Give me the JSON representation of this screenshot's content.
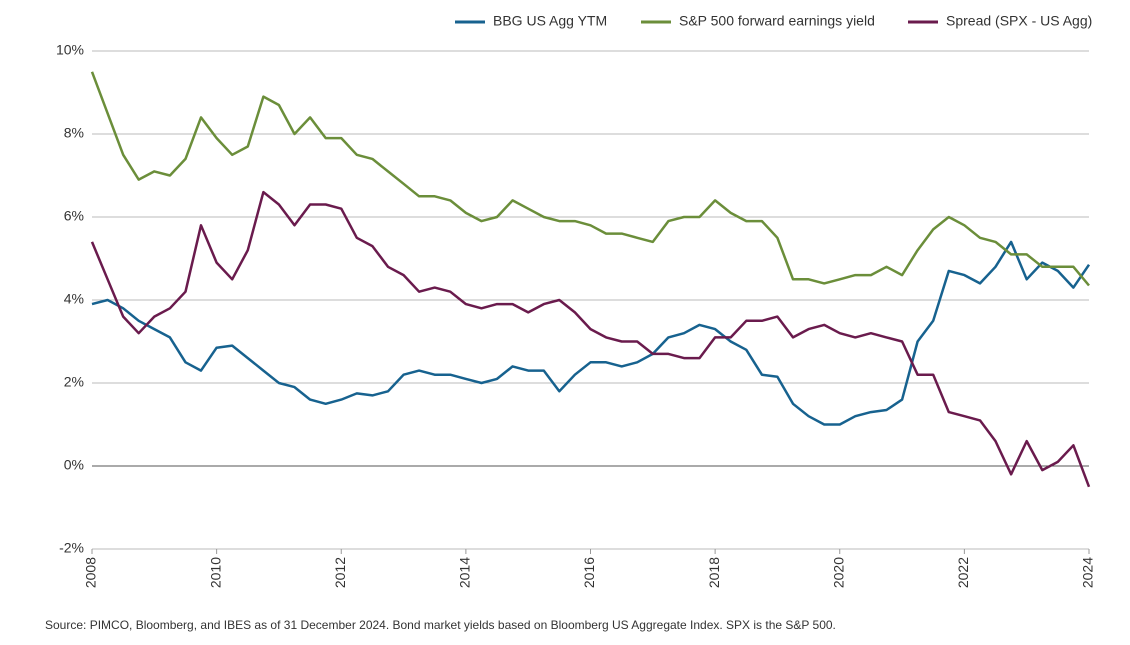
{
  "chart_data": {
    "type": "line",
    "x": [
      2008,
      2008.25,
      2008.5,
      2008.75,
      2009,
      2009.25,
      2009.5,
      2009.75,
      2010,
      2010.25,
      2010.5,
      2010.75,
      2011,
      2011.25,
      2011.5,
      2011.75,
      2012,
      2012.25,
      2012.5,
      2012.75,
      2013,
      2013.25,
      2013.5,
      2013.75,
      2014,
      2014.25,
      2014.5,
      2014.75,
      2015,
      2015.25,
      2015.5,
      2015.75,
      2016,
      2016.25,
      2016.5,
      2016.75,
      2017,
      2017.25,
      2017.5,
      2017.75,
      2018,
      2018.25,
      2018.5,
      2018.75,
      2019,
      2019.25,
      2019.5,
      2019.75,
      2020,
      2020.25,
      2020.5,
      2020.75,
      2021,
      2021.25,
      2021.5,
      2021.75,
      2022,
      2022.25,
      2022.5,
      2022.75,
      2023,
      2023.25,
      2023.5,
      2023.75,
      2024
    ],
    "series": [
      {
        "name": "BBG US Agg YTM",
        "color": "#17628f",
        "values": [
          3.9,
          4.0,
          3.8,
          3.5,
          3.3,
          3.1,
          2.5,
          2.3,
          2.85,
          2.9,
          2.6,
          2.3,
          2.0,
          1.9,
          1.6,
          1.5,
          1.6,
          1.75,
          1.7,
          1.8,
          2.2,
          2.3,
          2.2,
          2.2,
          2.1,
          2.0,
          2.1,
          2.4,
          2.3,
          2.3,
          1.8,
          2.2,
          2.5,
          2.5,
          2.4,
          2.5,
          2.7,
          3.1,
          3.2,
          3.4,
          3.3,
          3.0,
          2.8,
          2.2,
          2.15,
          1.5,
          1.2,
          1.0,
          1.0,
          1.2,
          1.3,
          1.35,
          1.6,
          3.0,
          3.5,
          4.7,
          4.6,
          4.4,
          4.8,
          5.4,
          4.5,
          4.9,
          4.7,
          4.3,
          4.85
        ]
      },
      {
        "name": "S&P 500 forward earnings yield",
        "color": "#6b8e3a",
        "values": [
          9.5,
          8.5,
          7.5,
          6.9,
          7.1,
          7.0,
          7.4,
          8.4,
          7.9,
          7.5,
          7.7,
          8.9,
          8.7,
          8.0,
          8.4,
          7.9,
          7.9,
          7.5,
          7.4,
          7.1,
          6.8,
          6.5,
          6.5,
          6.4,
          6.1,
          5.9,
          6.0,
          6.4,
          6.2,
          6.0,
          5.9,
          5.9,
          5.8,
          5.6,
          5.6,
          5.5,
          5.4,
          5.9,
          6.0,
          6.0,
          6.4,
          6.1,
          5.9,
          5.9,
          5.5,
          4.5,
          4.5,
          4.4,
          4.5,
          4.6,
          4.6,
          4.8,
          4.6,
          5.2,
          5.7,
          6.0,
          5.8,
          5.5,
          5.4,
          5.1,
          5.1,
          4.8,
          4.8,
          4.8,
          4.35
        ]
      },
      {
        "name": "Spread (SPX - US Agg)",
        "color": "#6a1b4d",
        "values": [
          5.4,
          4.5,
          3.6,
          3.2,
          3.6,
          3.8,
          4.2,
          5.8,
          4.9,
          4.5,
          5.2,
          6.6,
          6.3,
          5.8,
          6.3,
          6.3,
          6.2,
          5.5,
          5.3,
          4.8,
          4.6,
          4.2,
          4.3,
          4.2,
          3.9,
          3.8,
          3.9,
          3.9,
          3.7,
          3.9,
          4.0,
          3.7,
          3.3,
          3.1,
          3.0,
          3.0,
          2.7,
          2.7,
          2.6,
          2.6,
          3.1,
          3.1,
          3.5,
          3.5,
          3.6,
          3.1,
          3.3,
          3.4,
          3.2,
          3.1,
          3.2,
          3.1,
          3.0,
          2.2,
          2.2,
          1.3,
          1.2,
          1.1,
          0.6,
          -0.2,
          0.6,
          -0.1,
          0.1,
          0.5,
          -0.5
        ]
      }
    ],
    "xlim": [
      2008,
      2024
    ],
    "xticks": [
      2008,
      2010,
      2012,
      2014,
      2016,
      2018,
      2020,
      2022,
      2024
    ],
    "ylim": [
      -2,
      10
    ],
    "yticks": [
      {
        "value": -2,
        "label": "-2%"
      },
      {
        "value": 0,
        "label": "0%"
      },
      {
        "value": 2,
        "label": "2%"
      },
      {
        "value": 4,
        "label": "4%"
      },
      {
        "value": 6,
        "label": "6%"
      },
      {
        "value": 8,
        "label": "8%"
      },
      {
        "value": 10,
        "label": "10%"
      }
    ],
    "grid": true,
    "legend": "top-right",
    "note": "Source: PIMCO, Bloomberg, and IBES as of 31 December 2024. Bond market yields based on Bloomberg US Aggregate Index. SPX is the S&P 500."
  }
}
